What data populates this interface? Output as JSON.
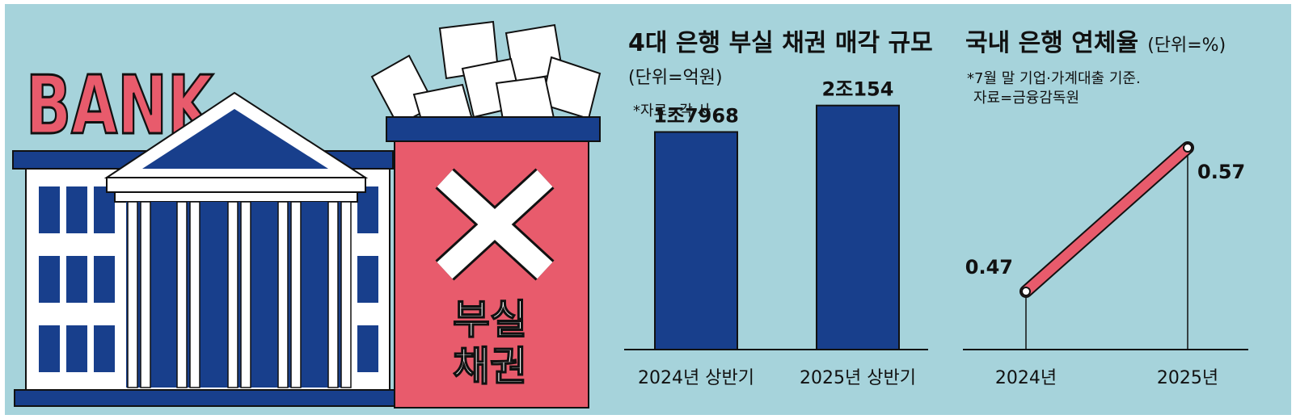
{
  "illustration": {
    "bank_sign": "BANK",
    "box_label_line1": "부실",
    "box_label_line2": "채권",
    "icons": [
      "bank-building-icon",
      "cross-x-icon",
      "paper-sheet-icon"
    ]
  },
  "colors": {
    "background": "#a6d3db",
    "navy": "#183f8c",
    "red": "#e85b6c",
    "white": "#ffffff",
    "ink": "#111111"
  },
  "chart_data": [
    {
      "type": "bar",
      "title": "4대 은행 부실 채권 매각 규모",
      "unit": "(단위=억원)",
      "source": "*자료=각 사",
      "categories": [
        "2024년 상반기",
        "2025년 상반기"
      ],
      "values": [
        17968,
        20154
      ],
      "value_labels": [
        "1조7968",
        "2조154"
      ]
    },
    {
      "type": "line",
      "title": "국내 은행 연체율",
      "unit": "(단위=%)",
      "note": "*7월 말 기업·가계대출 기준.",
      "source": "자료=금융감독원",
      "x": [
        "2024년",
        "2025년"
      ],
      "values": [
        0.47,
        0.57
      ],
      "value_labels": [
        "0.47",
        "0.57"
      ]
    }
  ]
}
